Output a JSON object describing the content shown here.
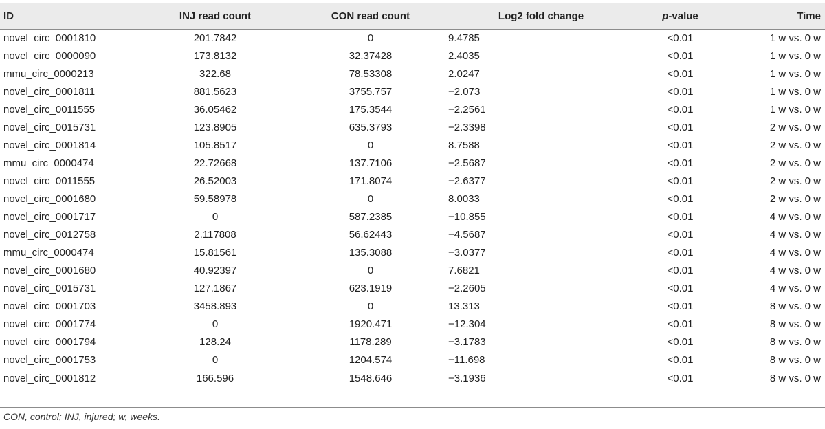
{
  "table": {
    "headers": {
      "id": "ID",
      "inj": "INJ read count",
      "con": "CON read count",
      "log2": "Log2 fold change",
      "p_italic": "p",
      "p_rest": "-value",
      "time": "Time"
    },
    "rows": [
      {
        "id": "novel_circ_0001810",
        "inj": "201.7842",
        "con": "0",
        "log2": "9.4785",
        "p": "<0.01",
        "time": "1 w vs. 0 w"
      },
      {
        "id": "novel_circ_0000090",
        "inj": "173.8132",
        "con": "32.37428",
        "log2": "2.4035",
        "p": "<0.01",
        "time": "1 w vs. 0 w"
      },
      {
        "id": "mmu_circ_0000213",
        "inj": "322.68",
        "con": "78.53308",
        "log2": "2.0247",
        "p": "<0.01",
        "time": "1 w vs. 0 w"
      },
      {
        "id": "novel_circ_0001811",
        "inj": "881.5623",
        "con": "3755.757",
        "log2": "−2.073",
        "p": "<0.01",
        "time": "1 w vs. 0 w"
      },
      {
        "id": "novel_circ_0011555",
        "inj": "36.05462",
        "con": "175.3544",
        "log2": "−2.2561",
        "p": "<0.01",
        "time": "1 w vs. 0 w"
      },
      {
        "id": "novel_circ_0015731",
        "inj": "123.8905",
        "con": "635.3793",
        "log2": "−2.3398",
        "p": "<0.01",
        "time": "2 w vs. 0 w"
      },
      {
        "id": "novel_circ_0001814",
        "inj": "105.8517",
        "con": "0",
        "log2": "8.7588",
        "p": "<0.01",
        "time": "2 w vs. 0 w"
      },
      {
        "id": "mmu_circ_0000474",
        "inj": "22.72668",
        "con": "137.7106",
        "log2": "−2.5687",
        "p": "<0.01",
        "time": "2 w vs. 0 w"
      },
      {
        "id": "novel_circ_0011555",
        "inj": "26.52003",
        "con": "171.8074",
        "log2": "−2.6377",
        "p": "<0.01",
        "time": "2 w vs. 0 w"
      },
      {
        "id": "novel_circ_0001680",
        "inj": "59.58978",
        "con": "0",
        "log2": "8.0033",
        "p": "<0.01",
        "time": "2 w vs. 0 w"
      },
      {
        "id": "novel_circ_0001717",
        "inj": "0",
        "con": "587.2385",
        "log2": "−10.855",
        "p": "<0.01",
        "time": "4 w vs. 0 w"
      },
      {
        "id": "novel_circ_0012758",
        "inj": "2.117808",
        "con": "56.62443",
        "log2": "−4.5687",
        "p": "<0.01",
        "time": "4 w vs. 0 w"
      },
      {
        "id": "mmu_circ_0000474",
        "inj": "15.81561",
        "con": "135.3088",
        "log2": "−3.0377",
        "p": "<0.01",
        "time": "4 w vs. 0 w"
      },
      {
        "id": "novel_circ_0001680",
        "inj": "40.92397",
        "con": "0",
        "log2": "7.6821",
        "p": "<0.01",
        "time": "4 w vs. 0 w"
      },
      {
        "id": "novel_circ_0015731",
        "inj": "127.1867",
        "con": "623.1919",
        "log2": "−2.2605",
        "p": "<0.01",
        "time": "4 w vs. 0 w"
      },
      {
        "id": "novel_circ_0001703",
        "inj": "3458.893",
        "con": "0",
        "log2": "13.313",
        "p": "<0.01",
        "time": "8 w vs. 0 w"
      },
      {
        "id": "novel_circ_0001774",
        "inj": "0",
        "con": "1920.471",
        "log2": "−12.304",
        "p": "<0.01",
        "time": "8 w vs. 0 w"
      },
      {
        "id": "novel_circ_0001794",
        "inj": "128.24",
        "con": "1178.289",
        "log2": "−3.1783",
        "p": "<0.01",
        "time": "8 w vs. 0 w"
      },
      {
        "id": "novel_circ_0001753",
        "inj": "0",
        "con": "1204.574",
        "log2": "−11.698",
        "p": "<0.01",
        "time": "8 w vs. 0 w"
      },
      {
        "id": "novel_circ_0001812",
        "inj": "166.596",
        "con": "1548.646",
        "log2": "−3.1936",
        "p": "<0.01",
        "time": "8 w vs. 0 w"
      }
    ]
  },
  "footnote": "CON, control; INJ, injured; w, weeks."
}
